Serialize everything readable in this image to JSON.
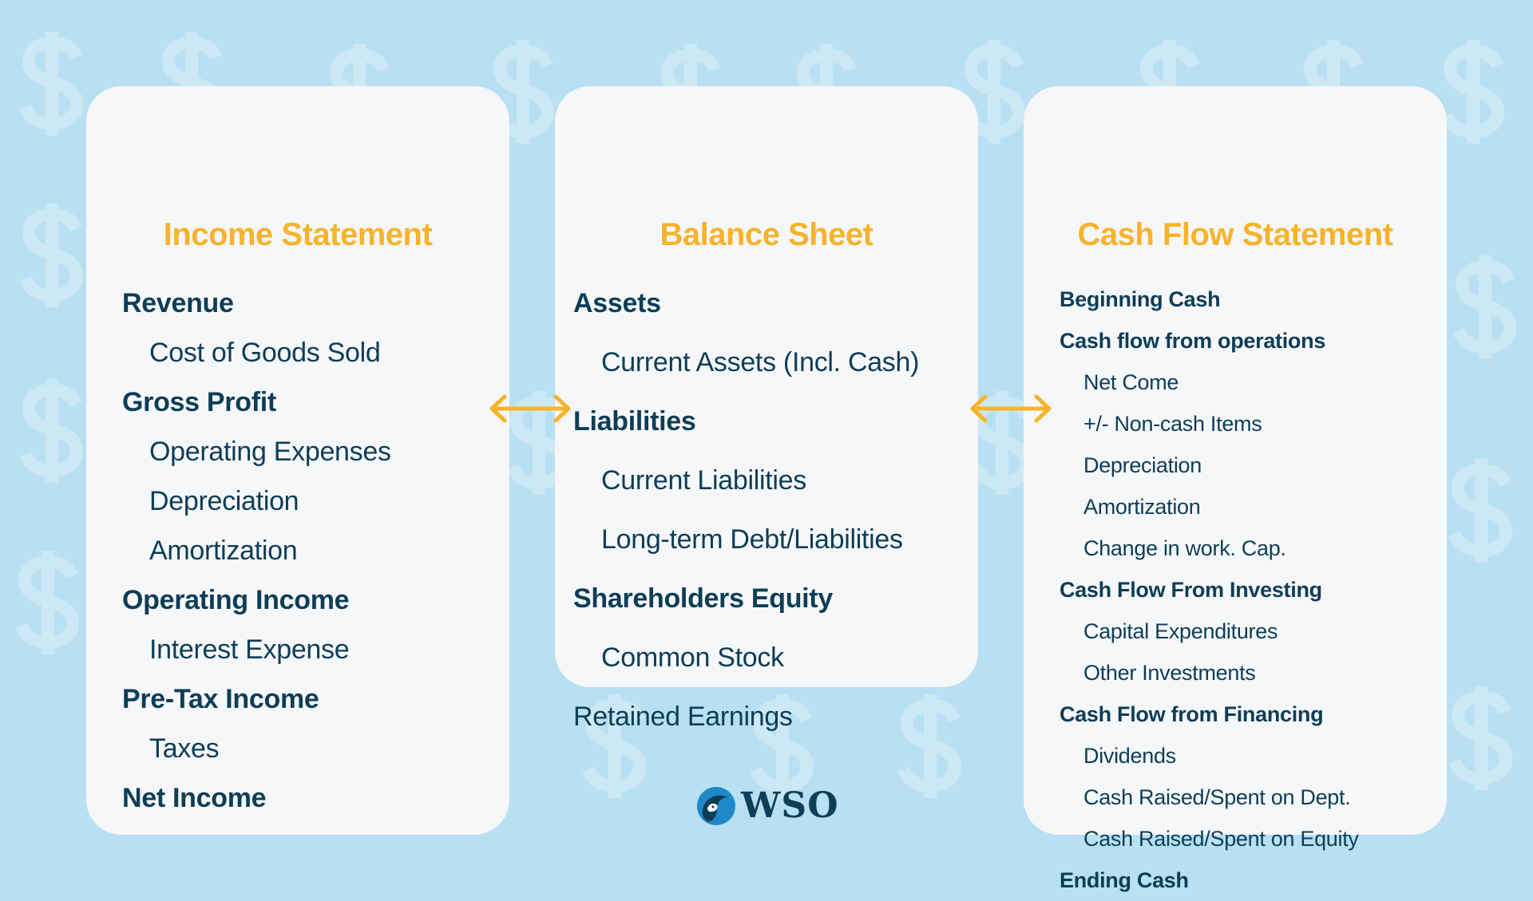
{
  "colors": {
    "background": "#b8e0f2",
    "card": "#f5f7f9",
    "heading": "#f7b32b",
    "text": "#0e3d56",
    "arrow": "#f7b32b"
  },
  "income_statement": {
    "title": "Income Statement",
    "items": [
      {
        "label": "Revenue",
        "bold": true
      },
      {
        "label": "Cost of Goods Sold",
        "bold": false
      },
      {
        "label": "Gross Profit",
        "bold": true
      },
      {
        "label": "Operating Expenses",
        "bold": false
      },
      {
        "label": "Depreciation",
        "bold": false
      },
      {
        "label": "Amortization",
        "bold": false
      },
      {
        "label": "Operating Income",
        "bold": true
      },
      {
        "label": "Interest Expense",
        "bold": false
      },
      {
        "label": "Pre-Tax Income",
        "bold": true
      },
      {
        "label": "Taxes",
        "bold": false
      },
      {
        "label": "Net Income",
        "bold": true
      }
    ]
  },
  "balance_sheet": {
    "title": "Balance Sheet",
    "items": [
      {
        "label": "Assets",
        "bold": true
      },
      {
        "label": "Current Assets (Incl. Cash)",
        "bold": false
      },
      {
        "label": "Liabilities",
        "bold": true
      },
      {
        "label": "Current Liabilities",
        "bold": false
      },
      {
        "label": "Long-term Debt/Liabilities",
        "bold": false
      },
      {
        "label": "Shareholders Equity",
        "bold": true
      },
      {
        "label": "Common Stock",
        "bold": false
      },
      {
        "label": "Retained Earnings",
        "bold": false,
        "flush": true
      }
    ]
  },
  "cash_flow_statement": {
    "title": "Cash Flow Statement",
    "items": [
      {
        "label": "Beginning Cash",
        "bold": true
      },
      {
        "label": "Cash flow from operations",
        "bold": true
      },
      {
        "label": "Net Come",
        "bold": false
      },
      {
        "label": "+/- Non-cash Items",
        "bold": false
      },
      {
        "label": "Depreciation",
        "bold": false
      },
      {
        "label": "Amortization",
        "bold": false
      },
      {
        "label": "Change in work. Cap.",
        "bold": false
      },
      {
        "label": "Cash Flow From Investing",
        "bold": true
      },
      {
        "label": "Capital Expenditures",
        "bold": false
      },
      {
        "label": "Other Investments",
        "bold": false
      },
      {
        "label": "Cash Flow from Financing",
        "bold": true
      },
      {
        "label": "Dividends",
        "bold": false
      },
      {
        "label": "Cash Raised/Spent on Dept.",
        "bold": false
      },
      {
        "label": "Cash Raised/Spent on Equity",
        "bold": false
      },
      {
        "label": "Ending Cash",
        "bold": true
      }
    ]
  },
  "icons": {
    "arrows": "double-headed-arrow-icon",
    "background": "dollar-sign-icon"
  },
  "logo": {
    "text": "WSO"
  }
}
